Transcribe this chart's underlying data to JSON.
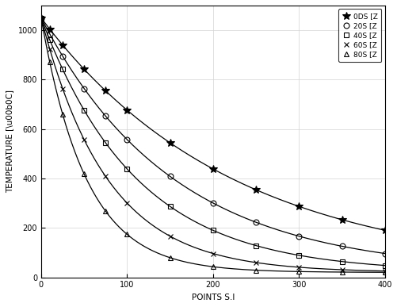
{
  "title": "",
  "xlabel": "POINTS S.I",
  "ylabel": "TEMPERATURE [\\u00b0C]",
  "xlim": [
    0,
    400
  ],
  "ylim": [
    0,
    1100
  ],
  "xtick_vals": [
    0,
    100,
    200,
    300,
    400
  ],
  "xtick_labels": [
    "0",
    "100",
    "200",
    "300",
    "400"
  ],
  "ytick_vals": [
    0,
    200,
    400,
    600,
    800,
    1000
  ],
  "ytick_labels": [
    "0",
    "200",
    "400",
    "600",
    "800",
    "1000"
  ],
  "series": [
    {
      "label": "0DS [Z",
      "marker": "*",
      "T0": 1050,
      "decay": 0.0045
    },
    {
      "label": "20S [Z",
      "marker": "o",
      "T0": 1050,
      "decay": 0.0065
    },
    {
      "label": "40S [Z",
      "marker": "s",
      "T0": 1050,
      "decay": 0.009
    },
    {
      "label": "60S [Z",
      "marker": "x",
      "T0": 1050,
      "decay": 0.013
    },
    {
      "label": "80S [Z",
      "marker": "^",
      "T0": 1050,
      "decay": 0.019
    }
  ],
  "marker_x_points": [
    0,
    10,
    25,
    50,
    75,
    100,
    150,
    200,
    250,
    300,
    350,
    400
  ],
  "color": "black",
  "figsize": [
    5.02,
    3.87
  ],
  "dpi": 100,
  "grid": true,
  "legend_labels": [
    "0DS [Z",
    "20S [Z",
    "40S [Z",
    "60S [Z",
    "80S [Z"
  ]
}
